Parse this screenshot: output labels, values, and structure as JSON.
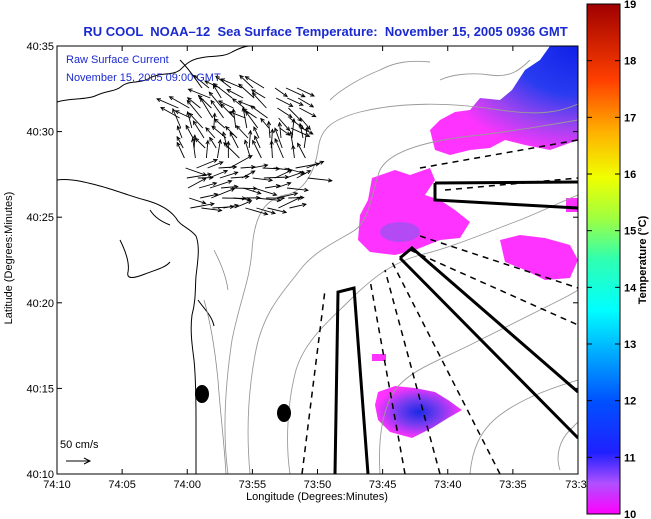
{
  "title": "RU COOL  NOAA–12  Sea Surface Temperature:  November 15, 2005 0936 GMT",
  "legend": {
    "line1": "Raw Surface Current",
    "line2": "November 15, 2005 09:00 GMT",
    "scale_label": "50 cm/s"
  },
  "axes": {
    "xlabel": "Longitude (Degrees:Minutes)",
    "ylabel": "Latitude (Degrees:Minutes)",
    "x_ticks": [
      "74:10",
      "74:05",
      "74:00",
      "73:55",
      "73:50",
      "73:45",
      "73:40",
      "73:35",
      "73:3"
    ],
    "y_ticks": [
      "40:35",
      "40:30",
      "40:25",
      "40:20",
      "40:15",
      "40:10"
    ]
  },
  "colorbar": {
    "label": "Temperature (°C)",
    "ticks": [
      "19",
      "18",
      "17",
      "16",
      "15",
      "14",
      "13",
      "12",
      "11",
      "10"
    ]
  },
  "colors": {
    "title": "#1a2ad0",
    "sst_warm": "#ff33ff",
    "sst_mid": "#9a4cf0",
    "sst_cool": "#1a2ae6"
  }
}
